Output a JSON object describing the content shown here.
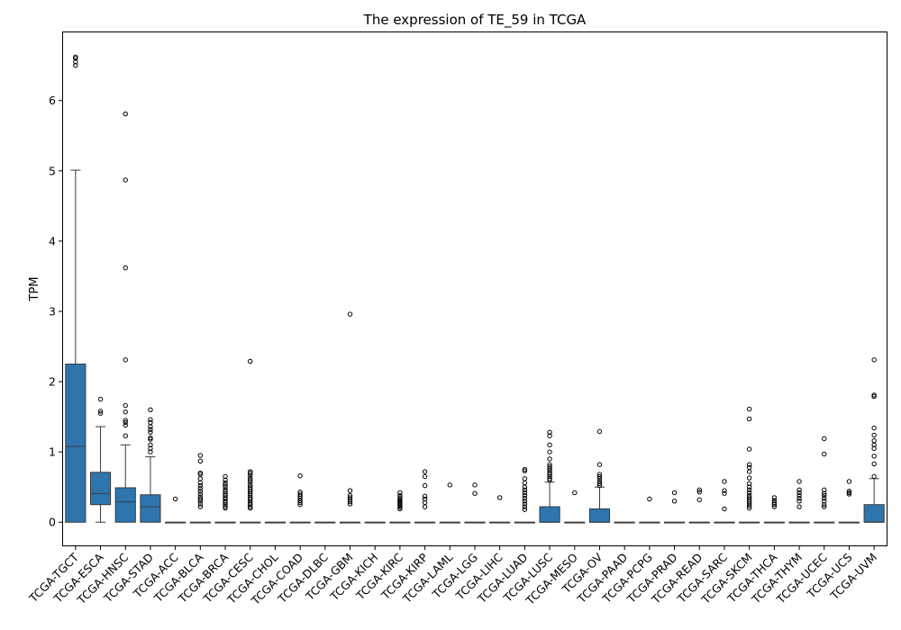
{
  "chart_data": {
    "type": "box",
    "title": "The expression of TE_59 in TCGA",
    "xlabel": "",
    "ylabel": "TPM",
    "ylim": [
      -0.33,
      6.97
    ],
    "yticks": [
      0,
      1,
      2,
      3,
      4,
      5,
      6
    ],
    "box_color": "#2e75ae",
    "grid": false,
    "categories": [
      "TCGA-TGCT",
      "TCGA-ESCA",
      "TCGA-HNSC",
      "TCGA-STAD",
      "TCGA-ACC",
      "TCGA-BLCA",
      "TCGA-BRCA",
      "TCGA-CESC",
      "TCGA-CHOL",
      "TCGA-COAD",
      "TCGA-DLBC",
      "TCGA-GBM",
      "TCGA-KICH",
      "TCGA-KIRC",
      "TCGA-KIRP",
      "TCGA-LAML",
      "TCGA-LGG",
      "TCGA-LIHC",
      "TCGA-LUAD",
      "TCGA-LUSC",
      "TCGA-MESO",
      "TCGA-OV",
      "TCGA-PAAD",
      "TCGA-PCPG",
      "TCGA-PRAD",
      "TCGA-READ",
      "TCGA-SARC",
      "TCGA-SKCM",
      "TCGA-THCA",
      "TCGA-THYM",
      "TCGA-UCEC",
      "TCGA-UCS",
      "TCGA-UVM"
    ],
    "boxes": [
      {
        "whislo": 0,
        "q1": 0,
        "med": 1.08,
        "q3": 2.25,
        "whishi": 5.01,
        "fliers": [
          6.5,
          6.55,
          6.6,
          6.62
        ]
      },
      {
        "whislo": 0,
        "q1": 0.25,
        "med": 0.41,
        "q3": 0.71,
        "whishi": 1.36,
        "fliers": [
          1.55,
          1.58,
          1.75
        ]
      },
      {
        "whislo": 0,
        "q1": 0,
        "med": 0.29,
        "q3": 0.49,
        "whishi": 1.1,
        "fliers": [
          1.23,
          1.38,
          1.42,
          1.45,
          1.57,
          1.66,
          2.31,
          3.62,
          4.87,
          5.81
        ]
      },
      {
        "whislo": 0,
        "q1": 0,
        "med": 0.22,
        "q3": 0.39,
        "whishi": 0.93,
        "fliers": [
          1.0,
          1.05,
          1.1,
          1.18,
          1.2,
          1.28,
          1.32,
          1.36,
          1.42,
          1.46,
          1.6
        ]
      },
      {
        "whislo": 0,
        "q1": 0,
        "med": 0,
        "q3": 0,
        "whishi": 0,
        "fliers": [
          0.33
        ]
      },
      {
        "whislo": 0,
        "q1": 0,
        "med": 0,
        "q3": 0,
        "whishi": 0,
        "fliers": [
          0.22,
          0.26,
          0.3,
          0.33,
          0.36,
          0.4,
          0.44,
          0.48,
          0.52,
          0.56,
          0.62,
          0.68,
          0.7,
          0.87,
          0.95
        ]
      },
      {
        "whislo": 0,
        "q1": 0,
        "med": 0,
        "q3": 0,
        "whishi": 0,
        "fliers": [
          0.2,
          0.22,
          0.25,
          0.28,
          0.3,
          0.33,
          0.35,
          0.38,
          0.4,
          0.43,
          0.46,
          0.5,
          0.53,
          0.56,
          0.6,
          0.65
        ]
      },
      {
        "whislo": 0,
        "q1": 0,
        "med": 0,
        "q3": 0,
        "whishi": 0,
        "fliers": [
          0.2,
          0.22,
          0.25,
          0.27,
          0.3,
          0.33,
          0.35,
          0.38,
          0.41,
          0.44,
          0.47,
          0.5,
          0.53,
          0.57,
          0.6,
          0.63,
          0.67,
          0.7,
          0.72,
          2.29
        ]
      },
      {
        "whislo": 0,
        "q1": 0,
        "med": 0,
        "q3": 0,
        "whishi": 0,
        "fliers": []
      },
      {
        "whislo": 0,
        "q1": 0,
        "med": 0,
        "q3": 0,
        "whishi": 0,
        "fliers": [
          0.25,
          0.28,
          0.31,
          0.34,
          0.37,
          0.4,
          0.43,
          0.66
        ]
      },
      {
        "whislo": 0,
        "q1": 0,
        "med": 0,
        "q3": 0,
        "whishi": 0,
        "fliers": []
      },
      {
        "whislo": 0,
        "q1": 0,
        "med": 0,
        "q3": 0,
        "whishi": 0,
        "fliers": [
          0.26,
          0.29,
          0.32,
          0.35,
          0.38,
          0.45,
          2.96
        ]
      },
      {
        "whislo": 0,
        "q1": 0,
        "med": 0,
        "q3": 0,
        "whishi": 0,
        "fliers": []
      },
      {
        "whislo": 0,
        "q1": 0,
        "med": 0,
        "q3": 0,
        "whishi": 0,
        "fliers": [
          0.19,
          0.21,
          0.23,
          0.25,
          0.27,
          0.29,
          0.31,
          0.33,
          0.35,
          0.38,
          0.42
        ]
      },
      {
        "whislo": 0,
        "q1": 0,
        "med": 0,
        "q3": 0,
        "whishi": 0,
        "fliers": [
          0.22,
          0.28,
          0.33,
          0.37,
          0.52,
          0.65,
          0.72
        ]
      },
      {
        "whislo": 0,
        "q1": 0,
        "med": 0,
        "q3": 0,
        "whishi": 0,
        "fliers": [
          0.53
        ]
      },
      {
        "whislo": 0,
        "q1": 0,
        "med": 0,
        "q3": 0,
        "whishi": 0,
        "fliers": [
          0.41,
          0.53
        ]
      },
      {
        "whislo": 0,
        "q1": 0,
        "med": 0,
        "q3": 0,
        "whishi": 0,
        "fliers": [
          0.35
        ]
      },
      {
        "whislo": 0,
        "q1": 0,
        "med": 0,
        "q3": 0,
        "whishi": 0,
        "fliers": [
          0.18,
          0.22,
          0.26,
          0.3,
          0.34,
          0.38,
          0.42,
          0.46,
          0.5,
          0.56,
          0.62,
          0.73,
          0.75
        ]
      },
      {
        "whislo": 0,
        "q1": 0,
        "med": 0,
        "q3": 0.22,
        "whishi": 0.57,
        "fliers": [
          0.6,
          0.62,
          0.65,
          0.68,
          0.7,
          0.73,
          0.76,
          0.79,
          0.82,
          0.9,
          1.0,
          1.1,
          1.23,
          1.28
        ]
      },
      {
        "whislo": 0,
        "q1": 0,
        "med": 0,
        "q3": 0,
        "whishi": 0,
        "fliers": [
          0.42
        ]
      },
      {
        "whislo": 0,
        "q1": 0,
        "med": 0,
        "q3": 0.19,
        "whishi": 0.5,
        "fliers": [
          0.52,
          0.55,
          0.58,
          0.62,
          0.65,
          0.68,
          0.82,
          1.29
        ]
      },
      {
        "whislo": 0,
        "q1": 0,
        "med": 0,
        "q3": 0,
        "whishi": 0,
        "fliers": []
      },
      {
        "whislo": 0,
        "q1": 0,
        "med": 0,
        "q3": 0,
        "whishi": 0,
        "fliers": [
          0.33
        ]
      },
      {
        "whislo": 0,
        "q1": 0,
        "med": 0,
        "q3": 0,
        "whishi": 0,
        "fliers": [
          0.3,
          0.42
        ]
      },
      {
        "whislo": 0,
        "q1": 0,
        "med": 0,
        "q3": 0,
        "whishi": 0,
        "fliers": [
          0.32,
          0.43,
          0.46
        ]
      },
      {
        "whislo": 0,
        "q1": 0,
        "med": 0,
        "q3": 0,
        "whishi": 0,
        "fliers": [
          0.19,
          0.41,
          0.45,
          0.58
        ]
      },
      {
        "whislo": 0,
        "q1": 0,
        "med": 0,
        "q3": 0,
        "whishi": 0,
        "fliers": [
          0.2,
          0.23,
          0.26,
          0.29,
          0.32,
          0.35,
          0.38,
          0.42,
          0.46,
          0.5,
          0.55,
          0.63,
          0.72,
          0.78,
          0.82,
          1.04,
          1.47,
          1.61
        ]
      },
      {
        "whislo": 0,
        "q1": 0,
        "med": 0,
        "q3": 0,
        "whishi": 0,
        "fliers": [
          0.22,
          0.25,
          0.28,
          0.31,
          0.35
        ]
      },
      {
        "whislo": 0,
        "q1": 0,
        "med": 0,
        "q3": 0,
        "whishi": 0,
        "fliers": [
          0.22,
          0.3,
          0.34,
          0.38,
          0.42,
          0.46,
          0.58
        ]
      },
      {
        "whislo": 0,
        "q1": 0,
        "med": 0,
        "q3": 0,
        "whishi": 0,
        "fliers": [
          0.22,
          0.25,
          0.3,
          0.34,
          0.38,
          0.41,
          0.46,
          0.97,
          1.19
        ]
      },
      {
        "whislo": 0,
        "q1": 0,
        "med": 0,
        "q3": 0,
        "whishi": 0,
        "fliers": [
          0.4,
          0.42,
          0.44,
          0.58
        ]
      },
      {
        "whislo": 0,
        "q1": 0,
        "med": 0,
        "q3": 0.25,
        "whishi": 0.62,
        "fliers": [
          0.65,
          0.83,
          0.94,
          1.05,
          1.1,
          1.16,
          1.24,
          1.34,
          1.79,
          1.81,
          2.31
        ]
      }
    ]
  }
}
